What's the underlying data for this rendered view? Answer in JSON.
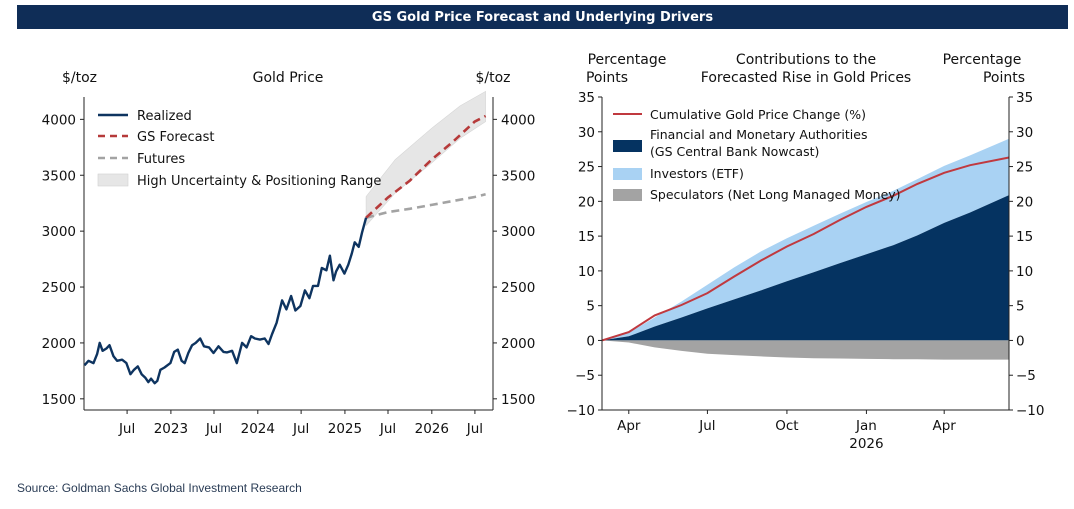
{
  "header": {
    "title": "GS Gold Price Forecast and Underlying Drivers"
  },
  "footer": {
    "source": "Source: Goldman Sachs Global Investment Research"
  },
  "colors": {
    "realized": "#0e3460",
    "forecast": "#b63a3a",
    "futures": "#a3a3a3",
    "range": "#e6e6e6",
    "financial": "#053361",
    "investors": "#a9d2f3",
    "speculators": "#a3a3a3",
    "cumulative": "#c0393f"
  },
  "chart_data": [
    {
      "type": "line",
      "title": "Gold Price",
      "ylabel_left": "$/toz",
      "ylabel_right": "$/toz",
      "ylim": [
        1400,
        4200
      ],
      "yticks": [
        1500,
        2000,
        2500,
        3000,
        3500,
        4000
      ],
      "x_range": [
        "2022-01-01",
        "2026-09-15"
      ],
      "x_ticks": [
        {
          "date": "2022-07-01",
          "label": "Jul"
        },
        {
          "date": "2023-01-01",
          "label": "2023"
        },
        {
          "date": "2023-07-01",
          "label": "Jul"
        },
        {
          "date": "2024-01-01",
          "label": "2024"
        },
        {
          "date": "2024-07-01",
          "label": "Jul"
        },
        {
          "date": "2025-01-01",
          "label": "2025"
        },
        {
          "date": "2025-07-01",
          "label": "Jul"
        },
        {
          "date": "2026-01-01",
          "label": "2026"
        },
        {
          "date": "2026-07-01",
          "label": "Jul"
        }
      ],
      "legend": {
        "position": "top-left",
        "entries": [
          "Realized",
          "GS Forecast",
          "Futures",
          "High Uncertainty & Positioning Range"
        ]
      },
      "series": [
        {
          "name": "Realized",
          "points": [
            [
              "2022-01-03",
              1800
            ],
            [
              "2022-01-20",
              1840
            ],
            [
              "2022-02-10",
              1820
            ],
            [
              "2022-02-25",
              1900
            ],
            [
              "2022-03-08",
              2000
            ],
            [
              "2022-03-20",
              1930
            ],
            [
              "2022-04-05",
              1950
            ],
            [
              "2022-04-18",
              1980
            ],
            [
              "2022-05-05",
              1880
            ],
            [
              "2022-05-20",
              1840
            ],
            [
              "2022-06-10",
              1850
            ],
            [
              "2022-06-28",
              1820
            ],
            [
              "2022-07-15",
              1720
            ],
            [
              "2022-07-30",
              1760
            ],
            [
              "2022-08-15",
              1790
            ],
            [
              "2022-08-31",
              1720
            ],
            [
              "2022-09-15",
              1690
            ],
            [
              "2022-09-28",
              1650
            ],
            [
              "2022-10-10",
              1680
            ],
            [
              "2022-10-25",
              1640
            ],
            [
              "2022-11-05",
              1660
            ],
            [
              "2022-11-18",
              1760
            ],
            [
              "2022-12-05",
              1780
            ],
            [
              "2022-12-30",
              1820
            ],
            [
              "2023-01-15",
              1920
            ],
            [
              "2023-01-30",
              1940
            ],
            [
              "2023-02-15",
              1840
            ],
            [
              "2023-02-28",
              1820
            ],
            [
              "2023-03-15",
              1910
            ],
            [
              "2023-03-31",
              1980
            ],
            [
              "2023-04-15",
              2000
            ],
            [
              "2023-05-04",
              2040
            ],
            [
              "2023-05-20",
              1970
            ],
            [
              "2023-06-10",
              1960
            ],
            [
              "2023-06-29",
              1910
            ],
            [
              "2023-07-20",
              1970
            ],
            [
              "2023-08-10",
              1920
            ],
            [
              "2023-08-25",
              1915
            ],
            [
              "2023-09-15",
              1930
            ],
            [
              "2023-10-05",
              1820
            ],
            [
              "2023-10-27",
              2000
            ],
            [
              "2023-11-15",
              1960
            ],
            [
              "2023-12-04",
              2060
            ],
            [
              "2023-12-20",
              2040
            ],
            [
              "2024-01-10",
              2030
            ],
            [
              "2024-01-30",
              2040
            ],
            [
              "2024-02-15",
              1990
            ],
            [
              "2024-03-01",
              2080
            ],
            [
              "2024-03-20",
              2180
            ],
            [
              "2024-04-12",
              2380
            ],
            [
              "2024-04-30",
              2300
            ],
            [
              "2024-05-20",
              2420
            ],
            [
              "2024-06-07",
              2290
            ],
            [
              "2024-06-28",
              2330
            ],
            [
              "2024-07-17",
              2470
            ],
            [
              "2024-08-05",
              2400
            ],
            [
              "2024-08-20",
              2510
            ],
            [
              "2024-09-10",
              2510
            ],
            [
              "2024-09-26",
              2670
            ],
            [
              "2024-10-15",
              2650
            ],
            [
              "2024-10-30",
              2780
            ],
            [
              "2024-11-14",
              2560
            ],
            [
              "2024-11-25",
              2640
            ],
            [
              "2024-12-10",
              2700
            ],
            [
              "2024-12-30",
              2620
            ],
            [
              "2025-01-15",
              2700
            ],
            [
              "2025-01-30",
              2800
            ],
            [
              "2025-02-11",
              2900
            ],
            [
              "2025-02-28",
              2860
            ],
            [
              "2025-03-14",
              2990
            ],
            [
              "2025-03-31",
              3120
            ]
          ]
        },
        {
          "name": "GS Forecast",
          "points": [
            [
              "2025-03-31",
              3120
            ],
            [
              "2025-06-30",
              3300
            ],
            [
              "2025-09-30",
              3450
            ],
            [
              "2025-12-31",
              3640
            ],
            [
              "2026-03-31",
              3800
            ],
            [
              "2026-06-30",
              3980
            ],
            [
              "2026-08-15",
              4030
            ]
          ]
        },
        {
          "name": "Futures",
          "points": [
            [
              "2025-03-31",
              3120
            ],
            [
              "2025-06-30",
              3170
            ],
            [
              "2025-09-30",
              3200
            ],
            [
              "2025-12-31",
              3235
            ],
            [
              "2026-03-31",
              3270
            ],
            [
              "2026-06-30",
              3305
            ],
            [
              "2026-08-15",
              3330
            ]
          ]
        }
      ],
      "range_band": {
        "name": "High Uncertainty & Positioning Range",
        "upper": [
          [
            "2025-03-31",
            3310
          ],
          [
            "2025-07-31",
            3640
          ],
          [
            "2025-12-31",
            3920
          ],
          [
            "2026-04-30",
            4120
          ],
          [
            "2026-08-15",
            4250
          ]
        ],
        "lower": [
          [
            "2026-08-15",
            3980
          ],
          [
            "2026-04-30",
            3830
          ],
          [
            "2025-12-31",
            3610
          ],
          [
            "2025-07-31",
            3340
          ],
          [
            "2025-03-31",
            3050
          ]
        ]
      }
    },
    {
      "type": "area",
      "title": "Contributions to the Forecasted Rise in Gold Prices",
      "title_lines": [
        "Contributions to the",
        "Forecasted Rise in Gold Prices"
      ],
      "ylabel_left": [
        "Percentage",
        "Points"
      ],
      "ylabel_right": [
        "Percentage",
        "Points"
      ],
      "ylim": [
        -10,
        35
      ],
      "yticks": [
        -10,
        -5,
        0,
        5,
        10,
        15,
        20,
        25,
        30,
        35
      ],
      "x_range": [
        "2025-03-01",
        "2026-06-15"
      ],
      "x_ticks": [
        {
          "date": "2025-04-01",
          "label": "Apr"
        },
        {
          "date": "2025-07-01",
          "label": "Jul"
        },
        {
          "date": "2025-10-01",
          "label": "Oct"
        },
        {
          "date": "2026-01-01",
          "label": "Jan",
          "sub": "2026"
        },
        {
          "date": "2026-04-01",
          "label": "Apr"
        }
      ],
      "legend": {
        "position": "top-left",
        "entries": [
          "Cumulative Gold Price Change (%)",
          "Financial and Monetary Authorities",
          "(GS Central Bank Nowcast)",
          "Investors (ETF)",
          "Speculators (Net Long Managed Money)"
        ]
      },
      "x": [
        "2025-03-01",
        "2025-04-01",
        "2025-05-01",
        "2025-06-01",
        "2025-07-01",
        "2025-08-01",
        "2025-09-01",
        "2025-10-01",
        "2025-11-01",
        "2025-12-01",
        "2026-01-01",
        "2026-02-01",
        "2026-03-01",
        "2026-04-01",
        "2026-05-01",
        "2026-06-15"
      ],
      "series": [
        {
          "name": "Financial and Monetary Authorities",
          "values": [
            0,
            0.6,
            2.0,
            3.3,
            4.6,
            5.9,
            7.2,
            8.5,
            9.8,
            11.1,
            12.4,
            13.7,
            15.1,
            16.9,
            18.4,
            20.9
          ]
        },
        {
          "name": "Investors (ETF)",
          "values": [
            0,
            0.5,
            1.3,
            2.3,
            3.4,
            4.6,
            5.6,
            6.2,
            6.7,
            7.1,
            7.5,
            7.8,
            8.1,
            8.2,
            8.2,
            8.1
          ]
        },
        {
          "name": "Speculators (Net Long Managed Money)",
          "values": [
            0,
            -0.3,
            -1.0,
            -1.5,
            -1.9,
            -2.1,
            -2.3,
            -2.45,
            -2.55,
            -2.6,
            -2.65,
            -2.7,
            -2.7,
            -2.75,
            -2.75,
            -2.75
          ]
        },
        {
          "name": "Cumulative Gold Price Change (%)",
          "values": [
            0,
            1.2,
            3.6,
            5.1,
            6.8,
            9.2,
            11.5,
            13.5,
            15.3,
            17.3,
            19.2,
            20.8,
            22.5,
            24.1,
            25.2,
            26.3
          ]
        }
      ]
    }
  ]
}
